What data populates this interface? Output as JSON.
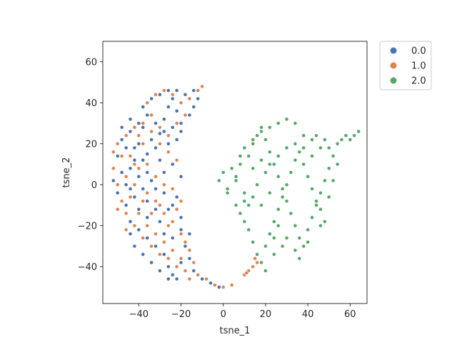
{
  "chart_data": {
    "type": "scatter",
    "title": "",
    "xlabel": "tsne_1",
    "ylabel": "tsne_2",
    "xlim": [
      -57,
      68
    ],
    "ylim": [
      -58,
      70
    ],
    "xticks": [
      -40,
      -20,
      0,
      20,
      40,
      60
    ],
    "yticks": [
      -40,
      -20,
      0,
      20,
      40,
      60
    ],
    "grid": false,
    "legend_position": "outside-top-right",
    "series": [
      {
        "name": "0.0",
        "color": "#4c72b0",
        "points": [
          [
            -48,
            22
          ],
          [
            -46,
            18
          ],
          [
            -44,
            26
          ],
          [
            -42,
            12
          ],
          [
            -40,
            20
          ],
          [
            -38,
            28
          ],
          [
            -36,
            15
          ],
          [
            -44,
            8
          ],
          [
            -40,
            4
          ],
          [
            -36,
            6
          ],
          [
            -32,
            18
          ],
          [
            -30,
            25
          ],
          [
            -28,
            32
          ],
          [
            -26,
            38
          ],
          [
            -24,
            42
          ],
          [
            -22,
            36
          ],
          [
            -20,
            30
          ],
          [
            -22,
            22
          ],
          [
            -26,
            20
          ],
          [
            -30,
            12
          ],
          [
            -34,
            2
          ],
          [
            -38,
            -2
          ],
          [
            -42,
            -6
          ],
          [
            -46,
            -10
          ],
          [
            -44,
            -18
          ],
          [
            -40,
            -22
          ],
          [
            -36,
            -26
          ],
          [
            -32,
            -30
          ],
          [
            -28,
            -34
          ],
          [
            -26,
            -40
          ],
          [
            -24,
            -44
          ],
          [
            -22,
            -46
          ],
          [
            -20,
            -38
          ],
          [
            -18,
            -30
          ],
          [
            -16,
            -24
          ],
          [
            -20,
            -16
          ],
          [
            -24,
            -10
          ],
          [
            -28,
            -4
          ],
          [
            -32,
            -12
          ],
          [
            -36,
            -16
          ],
          [
            -40,
            -12
          ],
          [
            -44,
            -2
          ],
          [
            -48,
            6
          ],
          [
            -50,
            14
          ],
          [
            -38,
            38
          ],
          [
            -34,
            42
          ],
          [
            -30,
            44
          ],
          [
            -26,
            46
          ],
          [
            -22,
            46
          ],
          [
            -18,
            44
          ],
          [
            -14,
            46
          ],
          [
            -12,
            42
          ],
          [
            -14,
            38
          ],
          [
            -16,
            34
          ],
          [
            -20,
            26
          ],
          [
            -24,
            28
          ],
          [
            -28,
            26
          ],
          [
            -32,
            30
          ],
          [
            -34,
            22
          ],
          [
            -38,
            12
          ],
          [
            -42,
            18
          ],
          [
            -46,
            0
          ],
          [
            -42,
            -30
          ],
          [
            -38,
            -34
          ],
          [
            -34,
            -38
          ],
          [
            -30,
            -42
          ],
          [
            -26,
            -46
          ],
          [
            -28,
            -24
          ],
          [
            -24,
            -26
          ],
          [
            -20,
            -22
          ],
          [
            -16,
            -36
          ],
          [
            -14,
            -42
          ],
          [
            -10,
            -46
          ],
          [
            -6,
            -48
          ],
          [
            -2,
            -50
          ],
          [
            -50,
            -4
          ],
          [
            -52,
            2
          ],
          [
            -44,
            -24
          ],
          [
            -36,
            -8
          ],
          [
            -30,
            -18
          ],
          [
            -26,
            -12
          ],
          [
            -22,
            -6
          ],
          [
            -20,
            4
          ],
          [
            -24,
            10
          ],
          [
            -28,
            6
          ],
          [
            -32,
            -2
          ],
          [
            -36,
            34
          ],
          [
            -40,
            30
          ],
          [
            -44,
            32
          ],
          [
            -48,
            28
          ]
        ]
      },
      {
        "name": "1.0",
        "color": "#dd8452",
        "points": [
          [
            -50,
            20
          ],
          [
            -46,
            24
          ],
          [
            -42,
            28
          ],
          [
            -38,
            30
          ],
          [
            -34,
            26
          ],
          [
            -30,
            20
          ],
          [
            -26,
            16
          ],
          [
            -22,
            12
          ],
          [
            -42,
            10
          ],
          [
            -46,
            4
          ],
          [
            -44,
            -6
          ],
          [
            -40,
            -14
          ],
          [
            -36,
            -20
          ],
          [
            -32,
            -24
          ],
          [
            -28,
            -28
          ],
          [
            -24,
            -32
          ],
          [
            -20,
            -36
          ],
          [
            -18,
            -42
          ],
          [
            -16,
            -46
          ],
          [
            -22,
            -40
          ],
          [
            -26,
            -36
          ],
          [
            -30,
            -34
          ],
          [
            -34,
            -30
          ],
          [
            -38,
            -26
          ],
          [
            -42,
            -20
          ],
          [
            -46,
            -14
          ],
          [
            -48,
            -8
          ],
          [
            -50,
            0
          ],
          [
            -52,
            8
          ],
          [
            -48,
            14
          ],
          [
            -36,
            40
          ],
          [
            -32,
            44
          ],
          [
            -28,
            46
          ],
          [
            -24,
            44
          ],
          [
            -20,
            40
          ],
          [
            -16,
            42
          ],
          [
            -12,
            46
          ],
          [
            -10,
            48
          ],
          [
            -18,
            34
          ],
          [
            -22,
            30
          ],
          [
            -26,
            24
          ],
          [
            -30,
            28
          ],
          [
            -34,
            34
          ],
          [
            -38,
            20
          ],
          [
            -40,
            8
          ],
          [
            -36,
            -4
          ],
          [
            -32,
            -8
          ],
          [
            -28,
            -14
          ],
          [
            -24,
            -18
          ],
          [
            -20,
            -24
          ],
          [
            -18,
            -28
          ],
          [
            -16,
            -32
          ],
          [
            -14,
            -38
          ],
          [
            -12,
            -44
          ],
          [
            -8,
            -46
          ],
          [
            -4,
            -49
          ],
          [
            0,
            -50
          ],
          [
            4,
            -49
          ],
          [
            10,
            -44
          ],
          [
            12,
            -42
          ],
          [
            14,
            -40
          ],
          [
            15,
            -36
          ],
          [
            16,
            -38
          ],
          [
            11,
            -43
          ],
          [
            -44,
            14
          ],
          [
            -40,
            24
          ],
          [
            -36,
            10
          ],
          [
            -32,
            4
          ],
          [
            -28,
            0
          ],
          [
            -24,
            -2
          ],
          [
            -20,
            -8
          ],
          [
            -22,
            -12
          ],
          [
            -26,
            -20
          ],
          [
            -30,
            -10
          ],
          [
            -34,
            -14
          ],
          [
            -38,
            -8
          ],
          [
            -42,
            0
          ],
          [
            -46,
            -22
          ],
          [
            -50,
            -12
          ],
          [
            -52,
            16
          ]
        ]
      },
      {
        "name": "2.0",
        "color": "#55a868",
        "points": [
          [
            -2,
            2
          ],
          [
            0,
            6
          ],
          [
            2,
            -2
          ],
          [
            4,
            8
          ],
          [
            6,
            2
          ],
          [
            8,
            10
          ],
          [
            10,
            -4
          ],
          [
            12,
            14
          ],
          [
            14,
            20
          ],
          [
            16,
            24
          ],
          [
            18,
            28
          ],
          [
            20,
            22
          ],
          [
            22,
            16
          ],
          [
            24,
            10
          ],
          [
            26,
            4
          ],
          [
            28,
            -2
          ],
          [
            30,
            -8
          ],
          [
            32,
            -14
          ],
          [
            34,
            -20
          ],
          [
            36,
            -26
          ],
          [
            38,
            -30
          ],
          [
            40,
            -22
          ],
          [
            42,
            -16
          ],
          [
            44,
            -10
          ],
          [
            46,
            -4
          ],
          [
            48,
            2
          ],
          [
            50,
            8
          ],
          [
            52,
            14
          ],
          [
            54,
            20
          ],
          [
            56,
            22
          ],
          [
            58,
            24
          ],
          [
            60,
            22
          ],
          [
            62,
            24
          ],
          [
            64,
            26
          ],
          [
            46,
            18
          ],
          [
            42,
            22
          ],
          [
            38,
            24
          ],
          [
            34,
            30
          ],
          [
            30,
            32
          ],
          [
            26,
            30
          ],
          [
            22,
            28
          ],
          [
            18,
            26
          ],
          [
            14,
            22
          ],
          [
            10,
            18
          ],
          [
            8,
            14
          ],
          [
            6,
            -10
          ],
          [
            8,
            -14
          ],
          [
            10,
            -18
          ],
          [
            12,
            -22
          ],
          [
            14,
            -28
          ],
          [
            16,
            -34
          ],
          [
            18,
            -38
          ],
          [
            20,
            -30
          ],
          [
            22,
            -24
          ],
          [
            24,
            -18
          ],
          [
            26,
            -12
          ],
          [
            28,
            -6
          ],
          [
            30,
            0
          ],
          [
            32,
            6
          ],
          [
            34,
            12
          ],
          [
            36,
            16
          ],
          [
            38,
            10
          ],
          [
            40,
            4
          ],
          [
            42,
            -2
          ],
          [
            44,
            -8
          ],
          [
            46,
            -12
          ],
          [
            48,
            -18
          ],
          [
            50,
            -6
          ],
          [
            52,
            2
          ],
          [
            54,
            10
          ],
          [
            20,
            6
          ],
          [
            16,
            0
          ],
          [
            14,
            -6
          ],
          [
            18,
            -10
          ],
          [
            22,
            -4
          ],
          [
            26,
            -20
          ],
          [
            30,
            -26
          ],
          [
            34,
            -32
          ],
          [
            24,
            -34
          ],
          [
            20,
            -42
          ],
          [
            12,
            -10
          ],
          [
            10,
            -8
          ],
          [
            14,
            8
          ],
          [
            18,
            12
          ],
          [
            22,
            10
          ],
          [
            26,
            14
          ],
          [
            30,
            18
          ],
          [
            34,
            20
          ],
          [
            38,
            18
          ],
          [
            42,
            14
          ],
          [
            44,
            24
          ],
          [
            48,
            22
          ],
          [
            50,
            18
          ],
          [
            46,
            -20
          ],
          [
            40,
            -28
          ],
          [
            36,
            -36
          ],
          [
            28,
            -30
          ],
          [
            24,
            -26
          ],
          [
            2,
            -4
          ],
          [
            6,
            4
          ]
        ]
      }
    ]
  }
}
